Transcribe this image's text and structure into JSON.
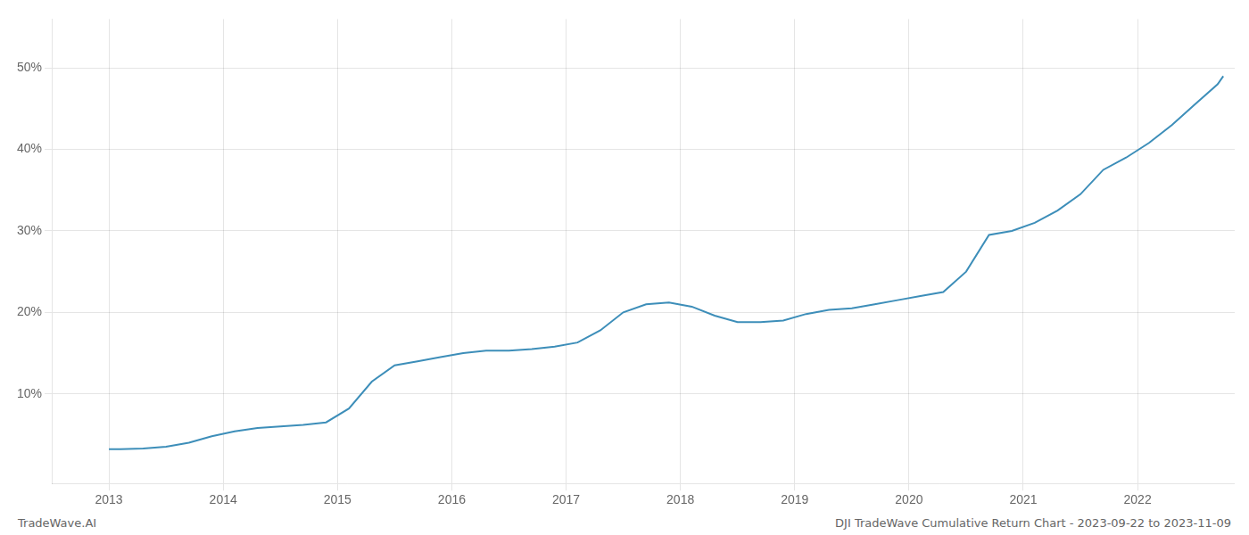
{
  "chart_data": {
    "type": "line",
    "title": "DJI TradeWave Cumulative Return Chart - 2023-09-22 to 2023-11-09",
    "annotations": [
      "TradeWave.AI"
    ],
    "x": [
      2013.0,
      2013.1,
      2013.3,
      2013.5,
      2013.7,
      2013.9,
      2014.1,
      2014.3,
      2014.5,
      2014.7,
      2014.9,
      2015.1,
      2015.3,
      2015.5,
      2015.7,
      2015.9,
      2016.1,
      2016.3,
      2016.5,
      2016.7,
      2016.9,
      2017.1,
      2017.3,
      2017.5,
      2017.7,
      2017.9,
      2018.1,
      2018.3,
      2018.5,
      2018.7,
      2018.9,
      2019.1,
      2019.3,
      2019.5,
      2019.7,
      2019.9,
      2020.1,
      2020.3,
      2020.5,
      2020.7,
      2020.9,
      2021.1,
      2021.3,
      2021.5,
      2021.7,
      2021.9,
      2022.1,
      2022.3,
      2022.5,
      2022.7,
      2022.75
    ],
    "values": [
      0.032,
      0.032,
      0.033,
      0.035,
      0.04,
      0.048,
      0.054,
      0.058,
      0.06,
      0.062,
      0.065,
      0.082,
      0.115,
      0.135,
      0.14,
      0.145,
      0.15,
      0.153,
      0.153,
      0.155,
      0.158,
      0.163,
      0.178,
      0.2,
      0.21,
      0.212,
      0.207,
      0.196,
      0.188,
      0.188,
      0.19,
      0.198,
      0.203,
      0.205,
      0.21,
      0.215,
      0.22,
      0.225,
      0.25,
      0.295,
      0.3,
      0.31,
      0.325,
      0.345,
      0.375,
      0.39,
      0.408,
      0.43,
      0.455,
      0.48,
      0.49
    ],
    "color": "#3d8eb9",
    "xlim": [
      2012.5,
      2022.85
    ],
    "xticks": [
      2013,
      2014,
      2015,
      2016,
      2017,
      2018,
      2019,
      2020,
      2021,
      2022
    ],
    "ylim": [
      -0.01,
      0.56
    ],
    "yticks": [
      {
        "value": 0.1,
        "label": "10%"
      },
      {
        "value": 0.2,
        "label": "20%"
      },
      {
        "value": 0.3,
        "label": "30%"
      },
      {
        "value": 0.4,
        "label": "40%"
      },
      {
        "value": 0.5,
        "label": "50%"
      }
    ],
    "grid": true
  }
}
